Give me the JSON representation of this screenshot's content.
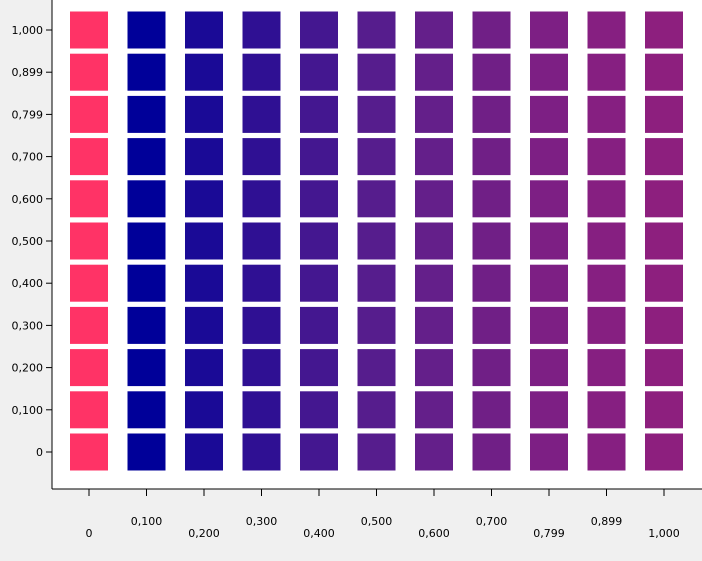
{
  "chart_data": {
    "type": "heatmap",
    "title": "",
    "xlabel": "",
    "ylabel": "",
    "x": [
      0,
      0.1,
      0.2,
      0.3,
      0.4,
      0.5,
      0.6,
      0.7,
      0.799,
      0.899,
      1.0
    ],
    "x_tick_labels": [
      "0",
      "0,100",
      "0,200",
      "0,300",
      "0,400",
      "0,500",
      "0,600",
      "0,700",
      "0,799",
      "0,899",
      "1,000"
    ],
    "y": [
      0,
      0.1,
      0.2,
      0.3,
      0.4,
      0.5,
      0.6,
      0.7,
      0.799,
      0.899,
      1.0
    ],
    "y_tick_labels": [
      "0",
      "0,100",
      "0,200",
      "0,300",
      "0,400",
      "0,500",
      "0,600",
      "0,700",
      "0,799",
      "0,899",
      "1,000"
    ],
    "column_colors": [
      "#ff3366",
      "#000099",
      "#1a0a96",
      "#2f1093",
      "#441790",
      "#561d8d",
      "#641f8a",
      "#701f86",
      "#7d1f84",
      "#861f81",
      "#8d1f7e"
    ],
    "grid": false,
    "legend": "none",
    "background": "#ffffff",
    "page_background": "#f0f0f0"
  }
}
